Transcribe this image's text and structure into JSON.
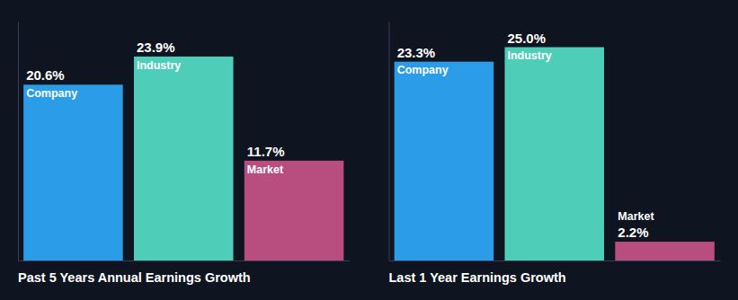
{
  "chart_data": [
    {
      "type": "bar",
      "title": "Past 5 Years Annual Earnings Growth",
      "categories": [
        "Company",
        "Industry",
        "Market"
      ],
      "values": [
        20.6,
        23.9,
        11.7
      ],
      "value_labels": [
        "20.6%",
        "23.9%",
        "11.7%"
      ],
      "colors": [
        "#2b9de8",
        "#4ecdb8",
        "#b84d80"
      ],
      "ylim": [
        0,
        28
      ],
      "data_labels": true,
      "tick_labels": false
    },
    {
      "type": "bar",
      "title": "Last 1 Year Earnings Growth",
      "categories": [
        "Company",
        "Industry",
        "Market"
      ],
      "values": [
        23.3,
        25.0,
        2.2
      ],
      "value_labels": [
        "23.3%",
        "25.0%",
        "2.2%"
      ],
      "colors": [
        "#2b9de8",
        "#4ecdb8",
        "#b84d80"
      ],
      "ylim": [
        0,
        28
      ],
      "data_labels": true,
      "tick_labels": false
    }
  ]
}
